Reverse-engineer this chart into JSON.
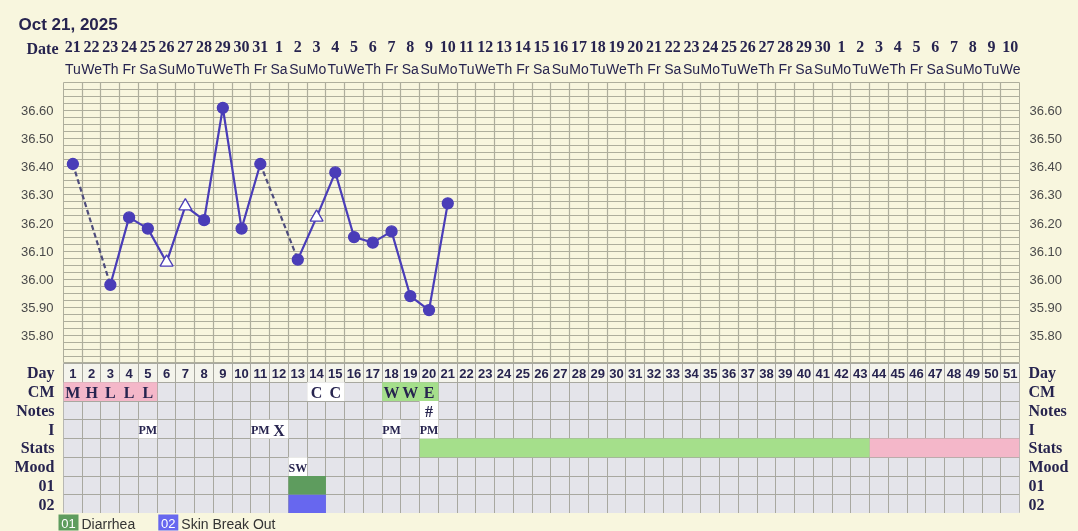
{
  "chart_data": [
    {
      "type": "line",
      "title": "Oct 21, 2025",
      "xlabel": "Date",
      "xlim": [
        "2025-10-20T12:00",
        "2025-12-10T12:00"
      ],
      "xticks": [
        {
          "value": "2025-10-21",
          "label": "21\nTu"
        },
        {
          "value": "2025-10-22",
          "label": "22\nWe"
        },
        {
          "value": "2025-10-23",
          "label": "23\nTh"
        },
        {
          "value": "2025-10-24",
          "label": "24\nFr"
        },
        {
          "value": "2025-10-25",
          "label": "25\nSa"
        },
        {
          "value": "2025-10-26",
          "label": "26\nSu"
        },
        {
          "value": "2025-10-27",
          "label": "27\nMo"
        },
        {
          "value": "2025-10-28",
          "label": "28\nTu"
        },
        {
          "value": "2025-10-29",
          "label": "29\nWe"
        },
        {
          "value": "2025-10-30",
          "label": "30\nTh"
        },
        {
          "value": "2025-10-31",
          "label": "31\nFr"
        },
        {
          "value": "2025-11-01",
          "label": "1\nSa"
        },
        {
          "value": "2025-11-02",
          "label": "2\nSu"
        },
        {
          "value": "2025-11-03",
          "label": "3\nMo"
        },
        {
          "value": "2025-11-04",
          "label": "4\nTu"
        },
        {
          "value": "2025-11-05",
          "label": "5\nWe"
        },
        {
          "value": "2025-11-06",
          "label": "6\nTh"
        },
        {
          "value": "2025-11-07",
          "label": "7\nFr"
        },
        {
          "value": "2025-11-08",
          "label": "8\nSa"
        },
        {
          "value": "2025-11-09",
          "label": "9\nSu"
        },
        {
          "value": "2025-11-10",
          "label": "10\nMo"
        },
        {
          "value": "2025-11-11",
          "label": "11\nTu"
        },
        {
          "value": "2025-11-12",
          "label": "12\nWe"
        },
        {
          "value": "2025-11-13",
          "label": "13\nTh"
        },
        {
          "value": "2025-11-14",
          "label": "14\nFr"
        },
        {
          "value": "2025-11-15",
          "label": "15\nSa"
        },
        {
          "value": "2025-11-16",
          "label": "16\nSu"
        },
        {
          "value": "2025-11-17",
          "label": "17\nMo"
        },
        {
          "value": "2025-11-18",
          "label": "18\nTu"
        },
        {
          "value": "2025-11-19",
          "label": "19\nWe"
        },
        {
          "value": "2025-11-20",
          "label": "20\nTh"
        },
        {
          "value": "2025-11-21",
          "label": "21\nFr"
        },
        {
          "value": "2025-11-22",
          "label": "22\nSa"
        },
        {
          "value": "2025-11-23",
          "label": "23\nSu"
        },
        {
          "value": "2025-11-24",
          "label": "24\nMo"
        },
        {
          "value": "2025-11-25",
          "label": "25\nTu"
        },
        {
          "value": "2025-11-26",
          "label": "26\nWe"
        },
        {
          "value": "2025-11-27",
          "label": "27\nTh"
        },
        {
          "value": "2025-11-28",
          "label": "28\nFr"
        },
        {
          "value": "2025-11-29",
          "label": "29\nSa"
        },
        {
          "value": "2025-11-30",
          "label": "30\nSu"
        },
        {
          "value": "2025-12-01",
          "label": "1\nMo"
        },
        {
          "value": "2025-12-02",
          "label": "2\nTu"
        },
        {
          "value": "2025-12-03",
          "label": "3\nWe"
        },
        {
          "value": "2025-12-04",
          "label": "4\nTh"
        },
        {
          "value": "2025-12-05",
          "label": "5\nFr"
        },
        {
          "value": "2025-12-06",
          "label": "6\nSa"
        },
        {
          "value": "2025-12-07",
          "label": "7\nSu"
        },
        {
          "value": "2025-12-08",
          "label": "8\nMo"
        },
        {
          "value": "2025-12-09",
          "label": "9\nTu"
        },
        {
          "value": "2025-12-10",
          "label": "10\nWe"
        },
        {
          "value": "2025-10-20T12:00",
          "label": null
        },
        {
          "value": "2025-10-21T12:00",
          "label": null
        },
        {
          "value": "2025-10-22T12:00",
          "label": null
        },
        {
          "value": "2025-10-23T12:00",
          "label": null
        },
        {
          "value": "2025-10-24T12:00",
          "label": null
        },
        {
          "value": "2025-10-25T12:00",
          "label": null
        },
        {
          "value": "2025-10-26T12:00",
          "label": null
        },
        {
          "value": "2025-10-27T12:00",
          "label": null
        },
        {
          "value": "2025-10-28T12:00",
          "label": null
        },
        {
          "value": "2025-10-29T12:00",
          "label": null
        },
        {
          "value": "2025-10-30T12:00",
          "label": null
        },
        {
          "value": "2025-10-31T12:00",
          "label": null
        },
        {
          "value": "2025-11-01T12:00",
          "label": null
        },
        {
          "value": "2025-11-02T12:00",
          "label": null
        },
        {
          "value": "2025-11-03T12:00",
          "label": null
        },
        {
          "value": "2025-11-04T12:00",
          "label": null
        },
        {
          "value": "2025-11-05T12:00",
          "label": null
        },
        {
          "value": "2025-11-06T12:00",
          "label": null
        },
        {
          "value": "2025-11-07T12:00",
          "label": null
        },
        {
          "value": "2025-11-08T12:00",
          "label": null
        },
        {
          "value": "2025-11-09T12:00",
          "label": null
        },
        {
          "value": "2025-11-10T12:00",
          "label": null
        },
        {
          "value": "2025-11-11T12:00",
          "label": null
        },
        {
          "value": "2025-11-12T12:00",
          "label": null
        },
        {
          "value": "2025-11-13T12:00",
          "label": null
        },
        {
          "value": "2025-11-14T12:00",
          "label": null
        },
        {
          "value": "2025-11-15T12:00",
          "label": null
        },
        {
          "value": "2025-11-16T12:00",
          "label": null
        },
        {
          "value": "2025-11-17T12:00",
          "label": null
        },
        {
          "value": "2025-11-18T12:00",
          "label": null
        },
        {
          "value": "2025-11-19T12:00",
          "label": null
        },
        {
          "value": "2025-11-20T12:00",
          "label": null
        },
        {
          "value": "2025-11-21T12:00",
          "label": null
        },
        {
          "value": "2025-11-22T12:00",
          "label": null
        },
        {
          "value": "2025-11-23T12:00",
          "label": null
        },
        {
          "value": "2025-11-24T12:00",
          "label": null
        },
        {
          "value": "2025-11-25T12:00",
          "label": null
        },
        {
          "value": "2025-11-26T12:00",
          "label": null
        },
        {
          "value": "2025-11-27T12:00",
          "label": null
        },
        {
          "value": "2025-11-28T12:00",
          "label": null
        },
        {
          "value": "2025-11-29T12:00",
          "label": null
        },
        {
          "value": "2025-11-30T12:00",
          "label": null
        },
        {
          "value": "2025-12-01T12:00",
          "label": null
        },
        {
          "value": "2025-12-02T12:00",
          "label": null
        },
        {
          "value": "2025-12-03T12:00",
          "label": null
        },
        {
          "value": "2025-12-04T12:00",
          "label": null
        },
        {
          "value": "2025-12-05T12:00",
          "label": null
        },
        {
          "value": "2025-12-06T12:00",
          "label": null
        },
        {
          "value": "2025-12-07T12:00",
          "label": null
        },
        {
          "value": "2025-12-08T12:00",
          "label": null
        },
        {
          "value": "2025-12-09T12:00",
          "label": null
        },
        {
          "value": "2025-12-10T12:00",
          "label": null
        }
      ],
      "ylim": [
        35.7,
        36.7
      ],
      "yticks": [
        {
          "value": 35.7,
          "label": null
        },
        {
          "value": 35.725,
          "label": null
        },
        {
          "value": 35.75,
          "label": null
        },
        {
          "value": 35.775,
          "label": null
        },
        {
          "value": 35.8,
          "label": "35.80"
        },
        {
          "value": 35.825,
          "label": null
        },
        {
          "value": 35.85,
          "label": null
        },
        {
          "value": 35.875,
          "label": null
        },
        {
          "value": 35.9,
          "label": "35.90"
        },
        {
          "value": 35.925,
          "label": null
        },
        {
          "value": 35.95,
          "label": null
        },
        {
          "value": 35.975,
          "label": null
        },
        {
          "value": 36.0,
          "label": "36.00"
        },
        {
          "value": 36.025,
          "label": null
        },
        {
          "value": 36.05,
          "label": null
        },
        {
          "value": 36.075,
          "label": null
        },
        {
          "value": 36.1,
          "label": "36.10"
        },
        {
          "value": 36.125,
          "label": null
        },
        {
          "value": 36.15,
          "label": null
        },
        {
          "value": 36.175,
          "label": null
        },
        {
          "value": 36.2,
          "label": "36.20"
        },
        {
          "value": 36.225,
          "label": null
        },
        {
          "value": 36.25,
          "label": null
        },
        {
          "value": 36.275,
          "label": null
        },
        {
          "value": 36.3,
          "label": "36.30"
        },
        {
          "value": 36.325,
          "label": null
        },
        {
          "value": 36.35,
          "label": null
        },
        {
          "value": 36.375,
          "label": null
        },
        {
          "value": 36.4,
          "label": "36.40"
        },
        {
          "value": 36.425,
          "label": null
        },
        {
          "value": 36.45,
          "label": null
        },
        {
          "value": 36.475,
          "label": null
        },
        {
          "value": 36.5,
          "label": "36.50"
        },
        {
          "value": 36.525,
          "label": null
        },
        {
          "value": 36.55,
          "label": null
        },
        {
          "value": 36.575,
          "label": null
        },
        {
          "value": 36.6,
          "label": "36.60"
        },
        {
          "value": 36.625,
          "label": null
        },
        {
          "value": 36.65,
          "label": null
        },
        {
          "value": 36.675,
          "label": null
        },
        {
          "value": 36.7,
          "label": null
        }
      ],
      "y2lim": [
        35.7,
        36.7
      ],
      "y2ticks": [
        {
          "value": 35.8,
          "label": "35.80"
        },
        {
          "value": 35.9,
          "label": "35.90"
        },
        {
          "value": 36.0,
          "label": "36.00"
        },
        {
          "value": 36.1,
          "label": "36.10"
        },
        {
          "value": 36.2,
          "label": "36.20"
        },
        {
          "value": 36.3,
          "label": "36.30"
        },
        {
          "value": 36.4,
          "label": "36.40"
        },
        {
          "value": 36.5,
          "label": "36.50"
        },
        {
          "value": 36.6,
          "label": "36.60"
        }
      ],
      "grid": true,
      "series": [
        {
          "color": "#4a3db8",
          "marker": "none",
          "line_style": "solid",
          "x": [
            "2025-10-23",
            "2025-10-24",
            "2025-10-25",
            "2025-10-26",
            "2025-10-27",
            "2025-10-28",
            "2025-10-29",
            "2025-10-30",
            "2025-10-31",
            "2025-11-01",
            "2025-11-02",
            "2025-11-03",
            "2025-11-04",
            "2025-11-05",
            "2025-11-06",
            "2025-11-07",
            "2025-11-08",
            "2025-11-09",
            "2025-11-10"
          ],
          "values": [
            35.98,
            36.22,
            36.18,
            36.06,
            36.26,
            36.21,
            36.61,
            36.18,
            36.41,
            null,
            36.07,
            36.22,
            36.38,
            36.15,
            36.13,
            36.17,
            35.94,
            35.89,
            36.27
          ]
        },
        {
          "color": "#4f4d7d",
          "marker": "none",
          "line_style": "dashed",
          "x": [
            "2025-10-21",
            "2025-10-23"
          ],
          "values": [
            36.41,
            35.98
          ]
        },
        {
          "color": "#4f4d7d",
          "marker": "none",
          "line_style": "dashed",
          "x": [
            "2025-10-31",
            "2025-11-02"
          ],
          "values": [
            36.41,
            36.07
          ]
        },
        {
          "type": "scatter",
          "color": "#4a3db8",
          "marker": "circle",
          "x": [
            "2025-10-21",
            "2025-10-23",
            "2025-10-24",
            "2025-10-25",
            "2025-10-28",
            "2025-10-29",
            "2025-10-30",
            "2025-10-31",
            "2025-11-02",
            "2025-11-04",
            "2025-11-05",
            "2025-11-06",
            "2025-11-07",
            "2025-11-08",
            "2025-11-09",
            "2025-11-10"
          ],
          "values": [
            36.41,
            35.98,
            36.22,
            36.18,
            36.21,
            36.61,
            36.18,
            36.41,
            36.07,
            36.38,
            36.15,
            36.13,
            36.17,
            35.94,
            35.89,
            36.27
          ]
        },
        {
          "type": "scatter",
          "color": "#4a3db8",
          "marker": "triangle",
          "x": [
            "2025-10-26",
            "2025-10-27",
            "2025-11-03"
          ],
          "values": [
            36.06,
            36.26,
            36.22
          ]
        }
      ]
    },
    {
      "type": "bar",
      "orientation": "horizontal",
      "xlabel": "Day",
      "categories": [
        "CM",
        "Notes",
        "I",
        "Stats",
        "Mood",
        "01",
        "02"
      ],
      "y2_categories": [
        "CM",
        "Notes",
        "I",
        "Stats",
        "Mood",
        "01",
        "02"
      ],
      "xlim": [
        0.5,
        51.5
      ],
      "xticks": [
        1,
        2,
        3,
        4,
        5,
        6,
        7,
        8,
        9,
        10,
        11,
        12,
        13,
        14,
        15,
        16,
        17,
        18,
        19,
        20,
        21,
        22,
        23,
        24,
        25,
        26,
        27,
        28,
        29,
        30,
        31,
        32,
        33,
        34,
        35,
        36,
        37,
        38,
        39,
        40,
        41,
        42,
        43,
        44,
        45,
        46,
        47,
        48,
        49,
        50,
        51,
        {
          "value": 0.5,
          "label": null
        },
        {
          "value": 1.5,
          "label": null
        },
        {
          "value": 2.5,
          "label": null
        },
        {
          "value": 3.5,
          "label": null
        },
        {
          "value": 4.5,
          "label": null
        },
        {
          "value": 5.5,
          "label": null
        },
        {
          "value": 6.5,
          "label": null
        },
        {
          "value": 7.5,
          "label": null
        },
        {
          "value": 8.5,
          "label": null
        },
        {
          "value": 9.5,
          "label": null
        },
        {
          "value": 10.5,
          "label": null
        },
        {
          "value": 11.5,
          "label": null
        },
        {
          "value": 12.5,
          "label": null
        },
        {
          "value": 13.5,
          "label": null
        },
        {
          "value": 14.5,
          "label": null
        },
        {
          "value": 15.5,
          "label": null
        },
        {
          "value": 16.5,
          "label": null
        },
        {
          "value": 17.5,
          "label": null
        },
        {
          "value": 18.5,
          "label": null
        },
        {
          "value": 19.5,
          "label": null
        },
        {
          "value": 20.5,
          "label": null
        },
        {
          "value": 21.5,
          "label": null
        },
        {
          "value": 22.5,
          "label": null
        },
        {
          "value": 23.5,
          "label": null
        },
        {
          "value": 24.5,
          "label": null
        },
        {
          "value": 25.5,
          "label": null
        },
        {
          "value": 26.5,
          "label": null
        },
        {
          "value": 27.5,
          "label": null
        },
        {
          "value": 28.5,
          "label": null
        },
        {
          "value": 29.5,
          "label": null
        },
        {
          "value": 30.5,
          "label": null
        },
        {
          "value": 31.5,
          "label": null
        },
        {
          "value": 32.5,
          "label": null
        },
        {
          "value": 33.5,
          "label": null
        },
        {
          "value": 34.5,
          "label": null
        },
        {
          "value": 35.5,
          "label": null
        },
        {
          "value": 36.5,
          "label": null
        },
        {
          "value": 37.5,
          "label": null
        },
        {
          "value": 38.5,
          "label": null
        },
        {
          "value": 39.5,
          "label": null
        },
        {
          "value": 40.5,
          "label": null
        },
        {
          "value": 41.5,
          "label": null
        },
        {
          "value": 42.5,
          "label": null
        },
        {
          "value": 43.5,
          "label": null
        },
        {
          "value": 44.5,
          "label": null
        },
        {
          "value": 45.5,
          "label": null
        },
        {
          "value": 46.5,
          "label": null
        },
        {
          "value": 47.5,
          "label": null
        },
        {
          "value": 48.5,
          "label": null
        },
        {
          "value": 49.5,
          "label": null
        },
        {
          "value": 50.5,
          "label": null
        },
        {
          "value": 51.5,
          "label": null
        }
      ],
      "grid": true,
      "legend": "bottom left",
      "series": [
        {
          "color": "#f4b7c9",
          "values": [
            5,
            null,
            null,
            8,
            null,
            null,
            null
          ],
          "base": [
            0.5,
            null,
            null,
            43.5,
            null,
            null,
            null
          ]
        },
        {
          "color": "#a5df8b",
          "values": [
            3,
            null,
            null,
            24,
            null,
            null,
            null
          ],
          "base": [
            17.5,
            null,
            null,
            19.5,
            null,
            null,
            null
          ]
        },
        {
          "color": "#ffffff",
          "values": [
            2,
            1,
            1,
            null,
            1,
            null,
            null
          ],
          "base": [
            13.5,
            19.5,
            4.5,
            null,
            12.5,
            null,
            null
          ]
        },
        {
          "color": "#ffffff",
          "values": [
            null,
            null,
            2,
            null,
            null,
            null,
            null
          ],
          "base": [
            null,
            null,
            10.5,
            null,
            null,
            null,
            null
          ]
        },
        {
          "color": "#ffffff",
          "values": [
            null,
            null,
            1,
            null,
            null,
            null,
            null
          ],
          "base": [
            null,
            null,
            17.5,
            null,
            null,
            null,
            null
          ]
        },
        {
          "color": "#ffffff",
          "values": [
            null,
            null,
            1,
            null,
            null,
            null,
            null
          ],
          "base": [
            null,
            null,
            19.5,
            null,
            null,
            null,
            null
          ]
        },
        {
          "name": "Diarrhea",
          "color": "#5e9c5e",
          "values": [
            null,
            null,
            null,
            null,
            null,
            2,
            null
          ],
          "base": [
            null,
            null,
            null,
            null,
            null,
            12.5,
            null
          ]
        },
        {
          "name": "Skin Break Out",
          "color": "#6767ef",
          "values": [
            null,
            null,
            null,
            null,
            null,
            null,
            2
          ],
          "base": [
            null,
            null,
            null,
            null,
            null,
            null,
            12.5
          ]
        }
      ],
      "annotations": [
        {
          "text": "M",
          "x": 1,
          "y": "CM"
        },
        {
          "text": "H",
          "x": 2,
          "y": "CM"
        },
        {
          "text": "L",
          "x": 3,
          "y": "CM"
        },
        {
          "text": "L",
          "x": 4,
          "y": "CM"
        },
        {
          "text": "L",
          "x": 5,
          "y": "CM"
        },
        {
          "text": "C",
          "x": 14,
          "y": "CM"
        },
        {
          "text": "C",
          "x": 15,
          "y": "CM"
        },
        {
          "text": "W",
          "x": 18,
          "y": "CM"
        },
        {
          "text": "W",
          "x": 19,
          "y": "CM"
        },
        {
          "text": "E",
          "x": 20,
          "y": "CM"
        },
        {
          "text": "#",
          "x": 20,
          "y": "Notes"
        },
        {
          "text": "PM",
          "x": 5,
          "y": "I"
        },
        {
          "text": "PM",
          "x": 11,
          "y": "I"
        },
        {
          "text": "X",
          "x": 12,
          "y": "I"
        },
        {
          "text": "PM",
          "x": 18,
          "y": "I"
        },
        {
          "text": "PM",
          "x": 20,
          "y": "I"
        },
        {
          "text": "SW",
          "x": 13,
          "y": "Mood"
        }
      ]
    }
  ]
}
